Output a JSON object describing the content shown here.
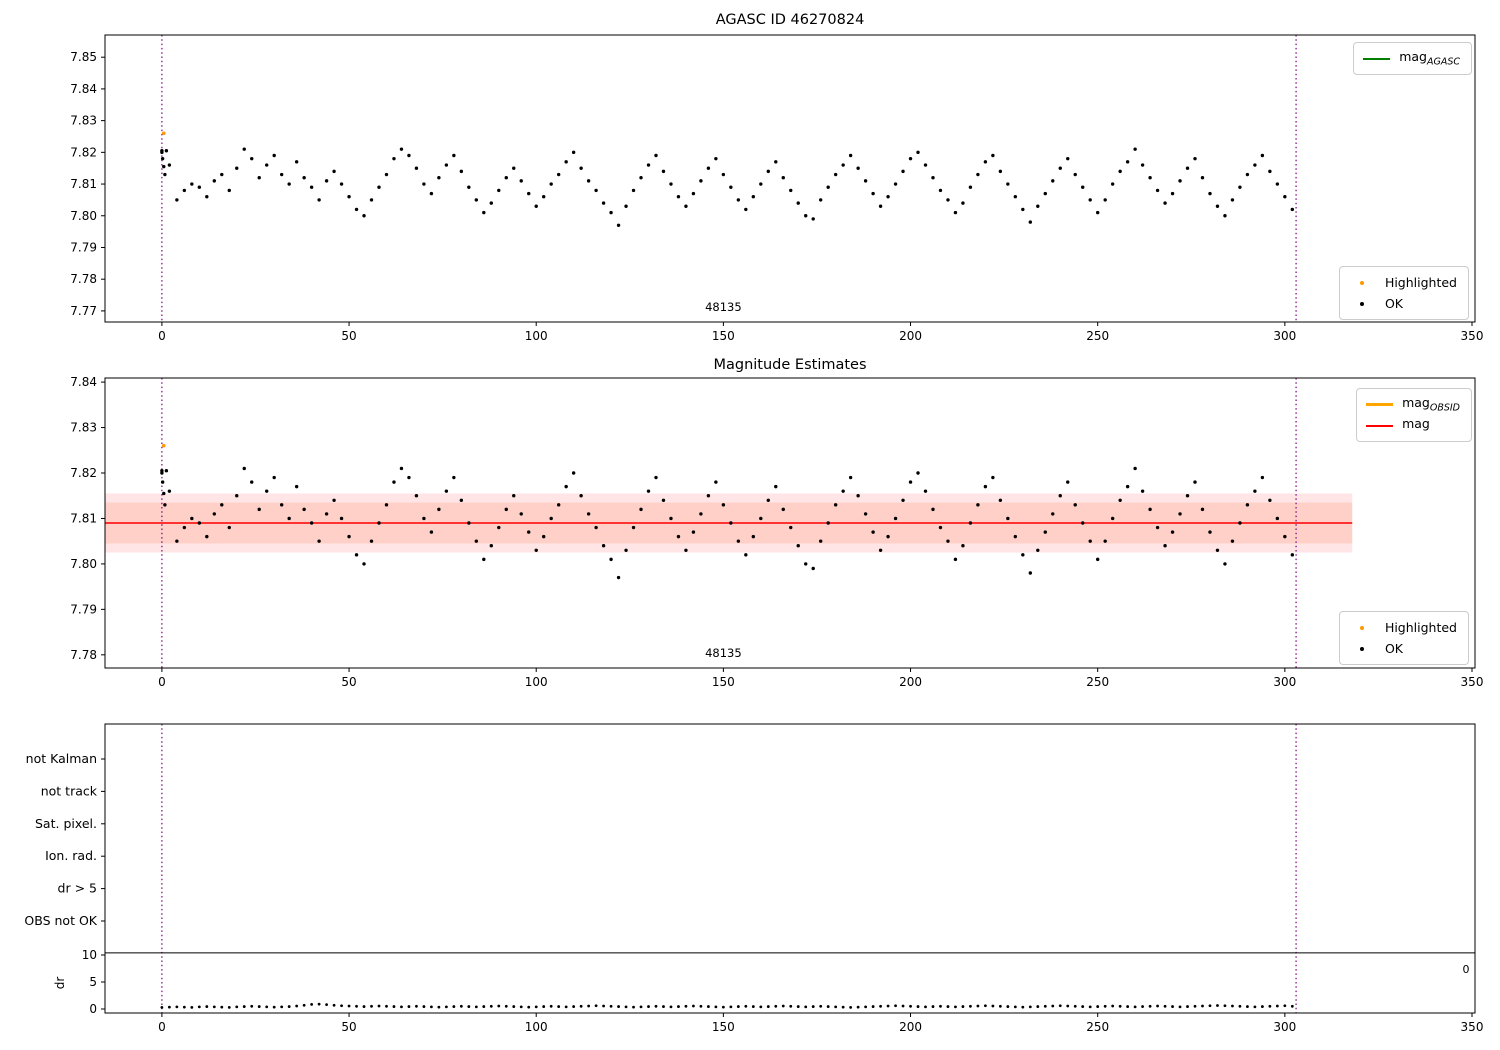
{
  "chart_data": [
    {
      "type": "scatter",
      "title": "AGASC ID 46270824",
      "xlabel": "",
      "ylabel": "",
      "xlim": [
        -15.2,
        350.8
      ],
      "ylim": [
        7.7665,
        7.857
      ],
      "xticks": [
        0,
        50,
        100,
        150,
        200,
        250,
        300,
        350
      ],
      "yticks": [
        7.85,
        7.84,
        7.83,
        7.82,
        7.81,
        7.8,
        7.79,
        7.78,
        7.77
      ],
      "ytick_labels": [
        "7.85",
        "7.84",
        "7.83",
        "7.82",
        "7.81",
        "7.80",
        "7.79",
        "7.78",
        "7.77"
      ],
      "vlines": [
        0,
        303
      ],
      "vline_color": "#800080",
      "annotation": {
        "text": "48135",
        "x": 150
      },
      "legend_line": [
        {
          "base": "mag",
          "sub": "AGASC",
          "color": "#007f00"
        }
      ],
      "legend_points": [
        {
          "label": "Highlighted",
          "color": "#ff9900"
        },
        {
          "label": "OK",
          "color": "#000000"
        }
      ],
      "highlighted": [
        [
          0.5,
          7.826
        ]
      ],
      "extra_points": [
        [
          0,
          7.8205
        ],
        [
          0.2,
          7.818
        ],
        [
          0.5,
          7.8155
        ],
        [
          0.8,
          7.813
        ],
        [
          1.2,
          7.8205
        ]
      ],
      "points": {
        "x_start": 0,
        "x_step": 2,
        "y": [
          7.82,
          7.816,
          7.805,
          7.808,
          7.81,
          7.809,
          7.806,
          7.811,
          7.813,
          7.808,
          7.815,
          7.821,
          7.818,
          7.812,
          7.816,
          7.819,
          7.813,
          7.81,
          7.817,
          7.812,
          7.809,
          7.805,
          7.811,
          7.814,
          7.81,
          7.806,
          7.802,
          7.8,
          7.805,
          7.809,
          7.813,
          7.818,
          7.821,
          7.819,
          7.815,
          7.81,
          7.807,
          7.812,
          7.816,
          7.819,
          7.814,
          7.809,
          7.805,
          7.801,
          7.804,
          7.808,
          7.812,
          7.815,
          7.811,
          7.807,
          7.803,
          7.806,
          7.81,
          7.813,
          7.817,
          7.82,
          7.815,
          7.811,
          7.808,
          7.804,
          7.801,
          7.797,
          7.803,
          7.808,
          7.812,
          7.816,
          7.819,
          7.814,
          7.81,
          7.806,
          7.803,
          7.807,
          7.811,
          7.815,
          7.818,
          7.813,
          7.809,
          7.805,
          7.802,
          7.806,
          7.81,
          7.814,
          7.817,
          7.812,
          7.808,
          7.804,
          7.8,
          7.799,
          7.805,
          7.809,
          7.813,
          7.816,
          7.819,
          7.815,
          7.811,
          7.807,
          7.803,
          7.806,
          7.81,
          7.814,
          7.818,
          7.82,
          7.816,
          7.812,
          7.808,
          7.805,
          7.801,
          7.804,
          7.809,
          7.813,
          7.817,
          7.819,
          7.814,
          7.81,
          7.806,
          7.802,
          7.798,
          7.803,
          7.807,
          7.811,
          7.815,
          7.818,
          7.813,
          7.809,
          7.805,
          7.801,
          7.805,
          7.81,
          7.814,
          7.817,
          7.821,
          7.816,
          7.812,
          7.808,
          7.804,
          7.807,
          7.811,
          7.815,
          7.818,
          7.812,
          7.807,
          7.803,
          7.8,
          7.805,
          7.809,
          7.813,
          7.816,
          7.819,
          7.814,
          7.81,
          7.806,
          7.802
        ]
      }
    },
    {
      "type": "scatter",
      "title": "Magnitude Estimates",
      "xlabel": "",
      "ylabel": "",
      "xlim": [
        -15.2,
        350.8
      ],
      "ylim": [
        7.7771,
        7.8409
      ],
      "xticks": [
        0,
        50,
        100,
        150,
        200,
        250,
        300,
        350
      ],
      "yticks": [
        7.84,
        7.83,
        7.82,
        7.81,
        7.8,
        7.79,
        7.78
      ],
      "ytick_labels": [
        "7.84",
        "7.83",
        "7.82",
        "7.81",
        "7.80",
        "7.79",
        "7.78"
      ],
      "vlines": [
        0,
        303
      ],
      "vline_color": "#800080",
      "annotation": {
        "text": "48135",
        "x": 150
      },
      "mag_line": {
        "value": 7.809,
        "color": "#ff0000",
        "x_end": 318
      },
      "band_outer": {
        "lo": 7.8025,
        "hi": 7.8155,
        "color": "rgba(255,0,0,0.10)",
        "x_end": 318
      },
      "band_inner": {
        "lo": 7.8045,
        "hi": 7.8135,
        "color": "rgba(255,70,0,0.13)",
        "x_end": 318
      },
      "legend_line": [
        {
          "base": "mag",
          "sub": "OBSID",
          "color": "#ffa500"
        },
        {
          "base": "mag",
          "sub": "",
          "color": "#ff0000"
        }
      ],
      "legend_points": [
        {
          "label": "Highlighted",
          "color": "#ff9900"
        },
        {
          "label": "OK",
          "color": "#000000"
        }
      ],
      "highlighted": [
        [
          0.5,
          7.826
        ]
      ],
      "points_same_as": 0
    },
    {
      "type": "flags",
      "categories": [
        "not Kalman",
        "not track",
        "Sat. pixel.",
        "Ion. rad.",
        "dr > 5",
        "OBS not OK"
      ],
      "flag_points": [],
      "dr_ylabel": "dr",
      "dr_ticks": [
        10,
        5,
        0
      ],
      "dr_tick_labels": [
        "10",
        "5",
        "0"
      ],
      "hline_dr": 10.4,
      "right_label": "0",
      "xticks": [
        0,
        50,
        100,
        150,
        200,
        250,
        300,
        350
      ],
      "vlines": [
        0,
        303
      ],
      "vline_color": "#800080",
      "dr": {
        "x_start": 0,
        "x_step": 2,
        "values": [
          0.3,
          0.35,
          0.4,
          0.35,
          0.3,
          0.4,
          0.45,
          0.4,
          0.35,
          0.3,
          0.4,
          0.45,
          0.5,
          0.45,
          0.4,
          0.35,
          0.4,
          0.45,
          0.55,
          0.7,
          0.85,
          0.9,
          0.8,
          0.7,
          0.6,
          0.55,
          0.5,
          0.45,
          0.5,
          0.55,
          0.5,
          0.45,
          0.4,
          0.45,
          0.5,
          0.45,
          0.4,
          0.35,
          0.4,
          0.45,
          0.5,
          0.45,
          0.4,
          0.45,
          0.5,
          0.55,
          0.5,
          0.45,
          0.4,
          0.35,
          0.4,
          0.45,
          0.5,
          0.45,
          0.4,
          0.45,
          0.5,
          0.55,
          0.6,
          0.55,
          0.5,
          0.45,
          0.4,
          0.35,
          0.4,
          0.45,
          0.5,
          0.45,
          0.4,
          0.45,
          0.5,
          0.55,
          0.5,
          0.45,
          0.4,
          0.35,
          0.4,
          0.45,
          0.5,
          0.45,
          0.4,
          0.45,
          0.5,
          0.55,
          0.5,
          0.45,
          0.4,
          0.45,
          0.5,
          0.45,
          0.4,
          0.35,
          0.3,
          0.35,
          0.4,
          0.45,
          0.5,
          0.55,
          0.6,
          0.55,
          0.5,
          0.45,
          0.4,
          0.45,
          0.5,
          0.45,
          0.4,
          0.45,
          0.5,
          0.55,
          0.6,
          0.55,
          0.5,
          0.45,
          0.4,
          0.35,
          0.4,
          0.45,
          0.5,
          0.55,
          0.6,
          0.55,
          0.5,
          0.45,
          0.4,
          0.45,
          0.5,
          0.55,
          0.5,
          0.45,
          0.4,
          0.45,
          0.5,
          0.55,
          0.5,
          0.45,
          0.4,
          0.45,
          0.5,
          0.55,
          0.6,
          0.65,
          0.6,
          0.55,
          0.5,
          0.45,
          0.4,
          0.45,
          0.5,
          0.55,
          0.6,
          0.5
        ]
      }
    }
  ]
}
